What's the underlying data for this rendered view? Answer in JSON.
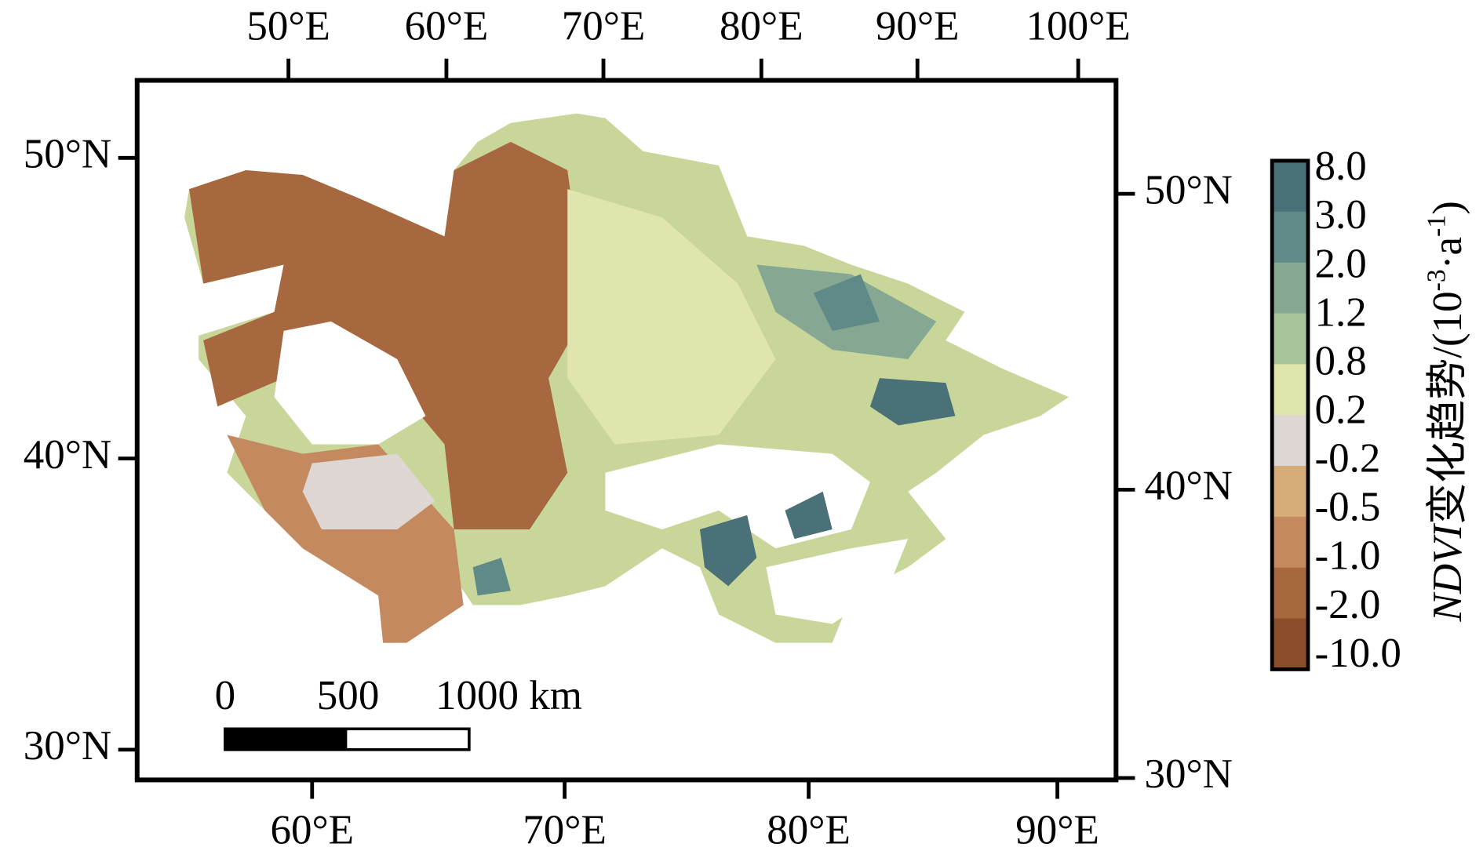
{
  "map": {
    "top_labels": [
      "50°E",
      "60°E",
      "70°E",
      "80°E",
      "90°E",
      "100°E"
    ],
    "bottom_labels": [
      "60°E",
      "70°E",
      "80°E",
      "90°E"
    ],
    "left_labels": [
      "50°N",
      "40°N",
      "30°N"
    ],
    "right_labels": [
      "50°N",
      "40°N",
      "30°N"
    ],
    "scale_bar": [
      "0",
      "500",
      "1000 km"
    ],
    "legend": {
      "labels": [
        "8.0",
        "3.0",
        "2.0",
        "1.2",
        "0.8",
        "0.2",
        "-0.2",
        "-0.5",
        "-1.0",
        "-2.0",
        "-10.0"
      ],
      "colors": [
        "#4a7078",
        "#5f8a88",
        "#86a892",
        "#a8c49a",
        "#dfe5ac",
        "#ddd6d3",
        "#d6ad78",
        "#c4895f",
        "#a8683f",
        "#8c4e2a"
      ],
      "title": [
        "NDVI",
        "变化趋势/(10",
        "-3",
        "·a",
        "-1",
        ")"
      ]
    }
  }
}
